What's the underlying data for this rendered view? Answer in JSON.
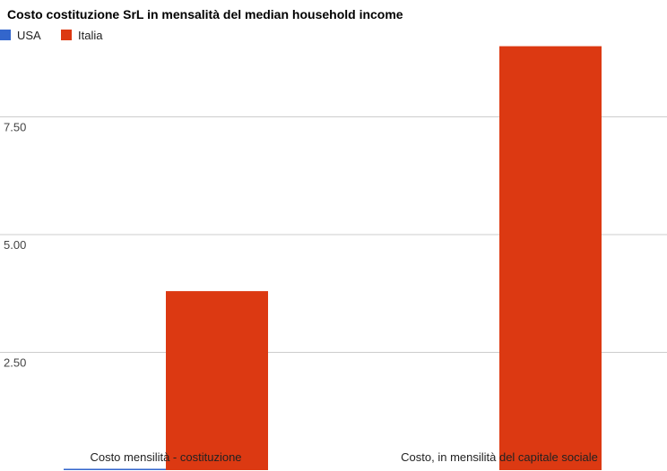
{
  "chart_data": {
    "type": "bar",
    "title": "Costo costituzione SrL in mensalità del median household income",
    "categories": [
      "Costo mensilità - costituzione",
      "Costo, in mensilità del capitale sociale"
    ],
    "series": [
      {
        "name": "USA",
        "values": [
          0.02,
          0
        ],
        "color": "#3366cc"
      },
      {
        "name": "Italia",
        "values": [
          3.8,
          9.0
        ],
        "color": "#dc3912"
      }
    ],
    "yticks": [
      "2.50",
      "5.00",
      "7.50"
    ],
    "ylim": [
      0,
      9.5
    ],
    "xlabel": "",
    "ylabel": "",
    "grid": true,
    "legend": "top-left"
  }
}
